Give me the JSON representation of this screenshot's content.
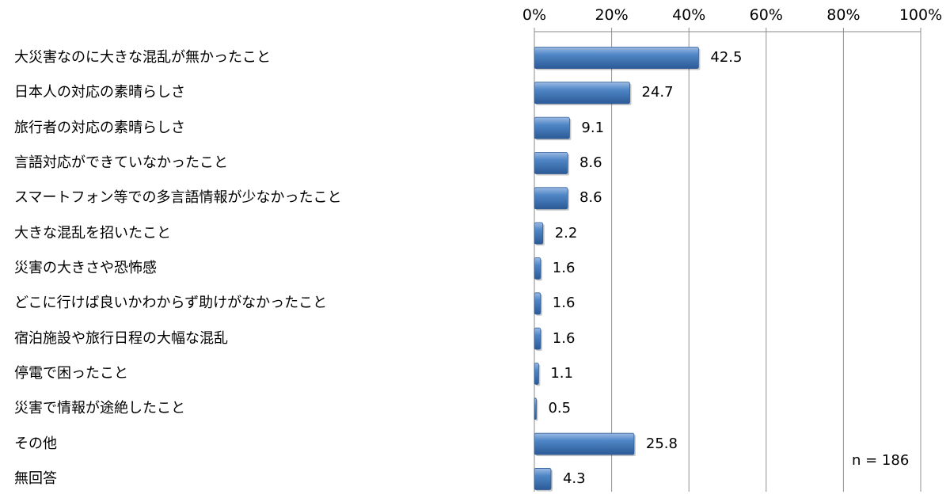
{
  "chart_data": {
    "type": "bar",
    "orientation": "horizontal",
    "categories": [
      "大災害なのに大きな混乱が無かったこと",
      "日本人の対応の素晴らしさ",
      "旅行者の対応の素晴らしさ",
      "言語対応ができていなかったこと",
      "スマートフォン等での多言語情報が少なかったこと",
      "大きな混乱を招いたこと",
      "災害の大きさや恐怖感",
      "どこに行けば良いかわからず助けがなかったこと",
      "宿泊施設や旅行日程の大幅な混乱",
      "停電で困ったこと",
      "災害で情報が途絶したこと",
      "その他",
      "無回答"
    ],
    "values": [
      42.5,
      24.7,
      9.1,
      8.6,
      8.6,
      2.2,
      1.6,
      1.6,
      1.6,
      1.1,
      0.5,
      25.8,
      4.3
    ],
    "value_labels": [
      "42.5",
      "24.7",
      "9.1",
      "8.6",
      "8.6",
      "2.2",
      "1.6",
      "1.6",
      "1.6",
      "1.1",
      "0.5",
      "25.8",
      "4.3"
    ],
    "xlim": [
      0,
      100
    ],
    "x_ticks": [
      "0%",
      "20%",
      "40%",
      "60%",
      "80%",
      "100%"
    ],
    "x_axis_position": "top",
    "grid": true,
    "bar_color": "#4a7ebb",
    "note": "n = 186"
  }
}
